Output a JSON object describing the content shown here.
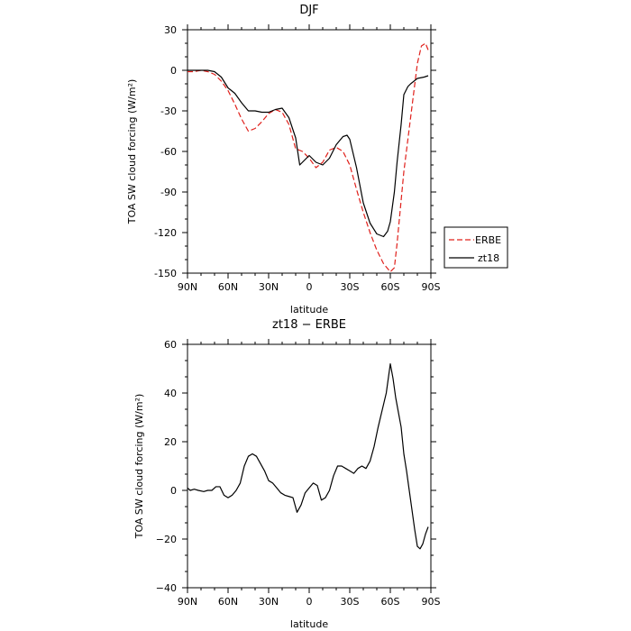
{
  "chart_data": [
    {
      "type": "line",
      "title": "DJF",
      "xlabel": "latitude",
      "ylabel": "TOA SW cloud forcing (W/m²)",
      "xlim": [
        -90,
        90
      ],
      "ylim": [
        -150,
        30
      ],
      "xticks": [
        -90,
        -60,
        -30,
        0,
        30,
        60,
        90
      ],
      "xticklabels": [
        "90N",
        "60N",
        "30N",
        "0",
        "30S",
        "60S",
        "90S"
      ],
      "yticks": [
        -150,
        -120,
        -90,
        -60,
        -30,
        0,
        30
      ],
      "yticklabels": [
        "-150",
        "-120",
        "-90",
        "-60",
        "-30",
        "0",
        "30"
      ],
      "legend_position": "right",
      "series": [
        {
          "name": "ERBE",
          "color": "#e0201b",
          "style": "dashed",
          "x": [
            -90,
            -85,
            -80,
            -75,
            -70,
            -65,
            -60,
            -55,
            -50,
            -45,
            -40,
            -35,
            -30,
            -25,
            -20,
            -15,
            -10,
            -5,
            0,
            5,
            10,
            15,
            20,
            25,
            30,
            35,
            40,
            45,
            50,
            55,
            60,
            63,
            65,
            70,
            75,
            80,
            83,
            86,
            88
          ],
          "y": [
            -1,
            -1,
            0,
            -1,
            -3,
            -8,
            -15,
            -25,
            -36,
            -45,
            -43,
            -38,
            -32,
            -29,
            -31,
            -40,
            -58,
            -60,
            -65,
            -72,
            -68,
            -59,
            -57,
            -60,
            -70,
            -88,
            -105,
            -120,
            -133,
            -143,
            -149,
            -146,
            -128,
            -75,
            -35,
            5,
            18,
            20,
            15
          ]
        },
        {
          "name": "zt18",
          "color": "#000000",
          "style": "solid",
          "x": [
            -90,
            -85,
            -80,
            -75,
            -70,
            -65,
            -60,
            -55,
            -50,
            -45,
            -40,
            -35,
            -30,
            -25,
            -20,
            -15,
            -10,
            -7,
            -5,
            0,
            5,
            10,
            15,
            20,
            25,
            28,
            30,
            35,
            40,
            45,
            50,
            55,
            58,
            60,
            63,
            65,
            68,
            70,
            73,
            75,
            80,
            85,
            88
          ],
          "y": [
            0,
            0,
            0,
            0,
            -1,
            -5,
            -13,
            -17,
            -24,
            -30,
            -30,
            -31,
            -31,
            -29,
            -28,
            -35,
            -50,
            -70,
            -68,
            -63,
            -68,
            -70,
            -65,
            -55,
            -49,
            -48,
            -51,
            -72,
            -98,
            -113,
            -121,
            -123,
            -119,
            -112,
            -90,
            -68,
            -40,
            -18,
            -12,
            -10,
            -6,
            -5,
            -4
          ]
        }
      ]
    },
    {
      "type": "line",
      "title": "zt18 − ERBE",
      "xlabel": "latitude",
      "ylabel": "TOA SW cloud forcing (W/m²)",
      "xlim": [
        -90,
        90
      ],
      "ylim": [
        -40,
        60
      ],
      "xticks": [
        -90,
        -60,
        -30,
        0,
        30,
        60,
        90
      ],
      "xticklabels": [
        "90N",
        "60N",
        "30N",
        "0",
        "30S",
        "60S",
        "90S"
      ],
      "yticks": [
        -40,
        -20,
        0,
        20,
        40,
        60
      ],
      "yticklabels": [
        "−40",
        "−20",
        "0",
        "20",
        "40",
        "60"
      ],
      "series": [
        {
          "color": "#000000",
          "style": "solid",
          "x": [
            -90,
            -88,
            -85,
            -82,
            -78,
            -75,
            -72,
            -69,
            -66,
            -63,
            -60,
            -57,
            -54,
            -51,
            -48,
            -45,
            -42,
            -39,
            -36,
            -33,
            -30,
            -27,
            -24,
            -21,
            -18,
            -15,
            -12,
            -9,
            -6,
            -3,
            0,
            3,
            6,
            9,
            12,
            15,
            18,
            21,
            24,
            27,
            30,
            33,
            36,
            39,
            42,
            45,
            48,
            51,
            54,
            57,
            60,
            62,
            64,
            66,
            68,
            70,
            72,
            74,
            76,
            78,
            80,
            82,
            84,
            86,
            88
          ],
          "y": [
            1,
            0,
            0.5,
            0,
            -0.5,
            0,
            0,
            1.5,
            1.5,
            -2,
            -3,
            -2,
            0,
            3,
            10,
            14,
            15,
            14,
            11,
            8,
            4,
            3,
            1,
            -1,
            -2,
            -2.5,
            -3,
            -9,
            -6,
            -1,
            1,
            3,
            2,
            -4,
            -3,
            0,
            6,
            10,
            10,
            9,
            8,
            7,
            9,
            10,
            9,
            12,
            18,
            26,
            33,
            40,
            52,
            46,
            38,
            32,
            26,
            15,
            8,
            0,
            -8,
            -16,
            -23,
            -24,
            -22,
            -18,
            -15
          ]
        }
      ]
    }
  ]
}
